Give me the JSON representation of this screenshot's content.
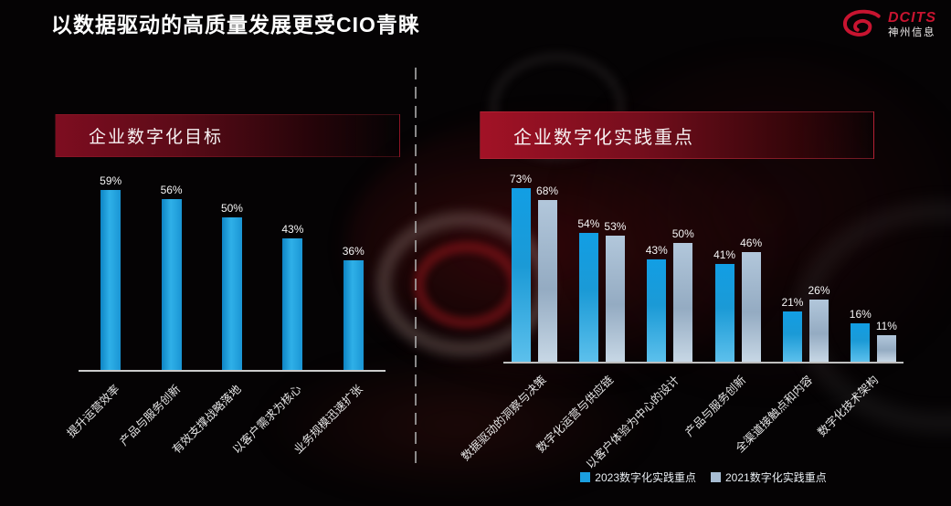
{
  "title": "以数据驱动的高质量发展更受CIO青睐",
  "logo": {
    "brand": "DCITS",
    "company": "神州信息",
    "color": "#c8102e"
  },
  "chart_data": [
    {
      "type": "bar",
      "title": "企业数字化目标",
      "categories": [
        "提升运营效率",
        "产品与服务创新",
        "有效支撑战略落地",
        "以客户需求为核心",
        "业务规模迅速扩张"
      ],
      "values": [
        59,
        56,
        50,
        43,
        36
      ],
      "value_suffix": "%",
      "ylim": [
        0,
        100
      ],
      "bar_color": "#1b9fdf",
      "grid": false,
      "legend_position": "none"
    },
    {
      "type": "bar",
      "title": "企业数字化实践重点",
      "categories": [
        "数据驱动的洞察与决策",
        "数字化运营与供应链",
        "以客户体验为中心的设计",
        "产品与服务创新",
        "全渠道接触点和内容",
        "数字化技术架构"
      ],
      "series": [
        {
          "name": "2023数字化实践重点",
          "values": [
            73,
            54,
            43,
            41,
            21,
            16
          ],
          "color": "#1b9fdf"
        },
        {
          "name": "2021数字化实践重点",
          "values": [
            68,
            53,
            50,
            46,
            26,
            11
          ],
          "color": "#a7bdd3"
        }
      ],
      "value_suffix": "%",
      "ylim": [
        0,
        100
      ],
      "grid": false,
      "legend_position": "bottom"
    }
  ]
}
